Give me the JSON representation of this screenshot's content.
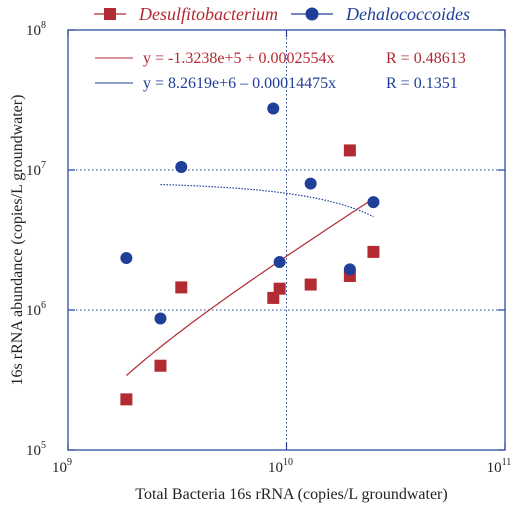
{
  "chart_data": {
    "type": "scatter",
    "x_scale": "log",
    "y_scale": "log",
    "xlim": [
      1000000000,
      100000000000
    ],
    "ylim": [
      100000,
      100000000
    ],
    "xlabel": "Total Bacteria 16s rRNA (copies/L groundwater)",
    "ylabel": "16s rRNA abundance (copies/L groundwater)",
    "x_ticks": [
      {
        "base": "10",
        "exp": "9",
        "value": 1000000000
      },
      {
        "base": "10",
        "exp": "10",
        "value": 10000000000
      },
      {
        "base": "10",
        "exp": "11",
        "value": 100000000000
      }
    ],
    "y_ticks": [
      {
        "base": "10",
        "exp": "5",
        "value": 100000
      },
      {
        "base": "10",
        "exp": "6",
        "value": 1000000
      },
      {
        "base": "10",
        "exp": "7",
        "value": 10000000
      },
      {
        "base": "10",
        "exp": "8",
        "value": 100000000
      }
    ],
    "grid": "dotted reference lines at x=1e10, y=1e6, y=1e7",
    "legend_placement": "top",
    "series": [
      {
        "name": "Desulfitobacterium",
        "marker": "square",
        "color": "#b22a32",
        "points": [
          {
            "x": 1850000000,
            "y": 230000
          },
          {
            "x": 2650000000,
            "y": 400000
          },
          {
            "x": 3300000000,
            "y": 1450000
          },
          {
            "x": 8700000000,
            "y": 1220000
          },
          {
            "x": 9300000000,
            "y": 1420000
          },
          {
            "x": 12900000000,
            "y": 1520000
          },
          {
            "x": 19500000000,
            "y": 1750000
          },
          {
            "x": 19500000000,
            "y": 13800000
          },
          {
            "x": 25000000000,
            "y": 2600000
          }
        ],
        "fit": {
          "equation": "y = -1.3238e+5 + 0.0002554x",
          "r_label": "R = 0.48613",
          "x_range": [
            1850000000,
            25000000000
          ]
        }
      },
      {
        "name": "Dehalococcoides",
        "marker": "circle",
        "color": "#1f3f99",
        "points": [
          {
            "x": 1850000000,
            "y": 2350000
          },
          {
            "x": 2650000000,
            "y": 870000
          },
          {
            "x": 3300000000,
            "y": 10500000
          },
          {
            "x": 8700000000,
            "y": 27500000
          },
          {
            "x": 9300000000,
            "y": 2200000
          },
          {
            "x": 12900000000,
            "y": 8000000
          },
          {
            "x": 19500000000,
            "y": 1950000
          },
          {
            "x": 25000000000,
            "y": 5900000
          }
        ],
        "fit": {
          "equation": "y = 8.2619e+6 – 0.00014475x",
          "r_label": "R = 0.1351",
          "x_range": [
            2650000000,
            25000000000
          ]
        }
      }
    ]
  }
}
